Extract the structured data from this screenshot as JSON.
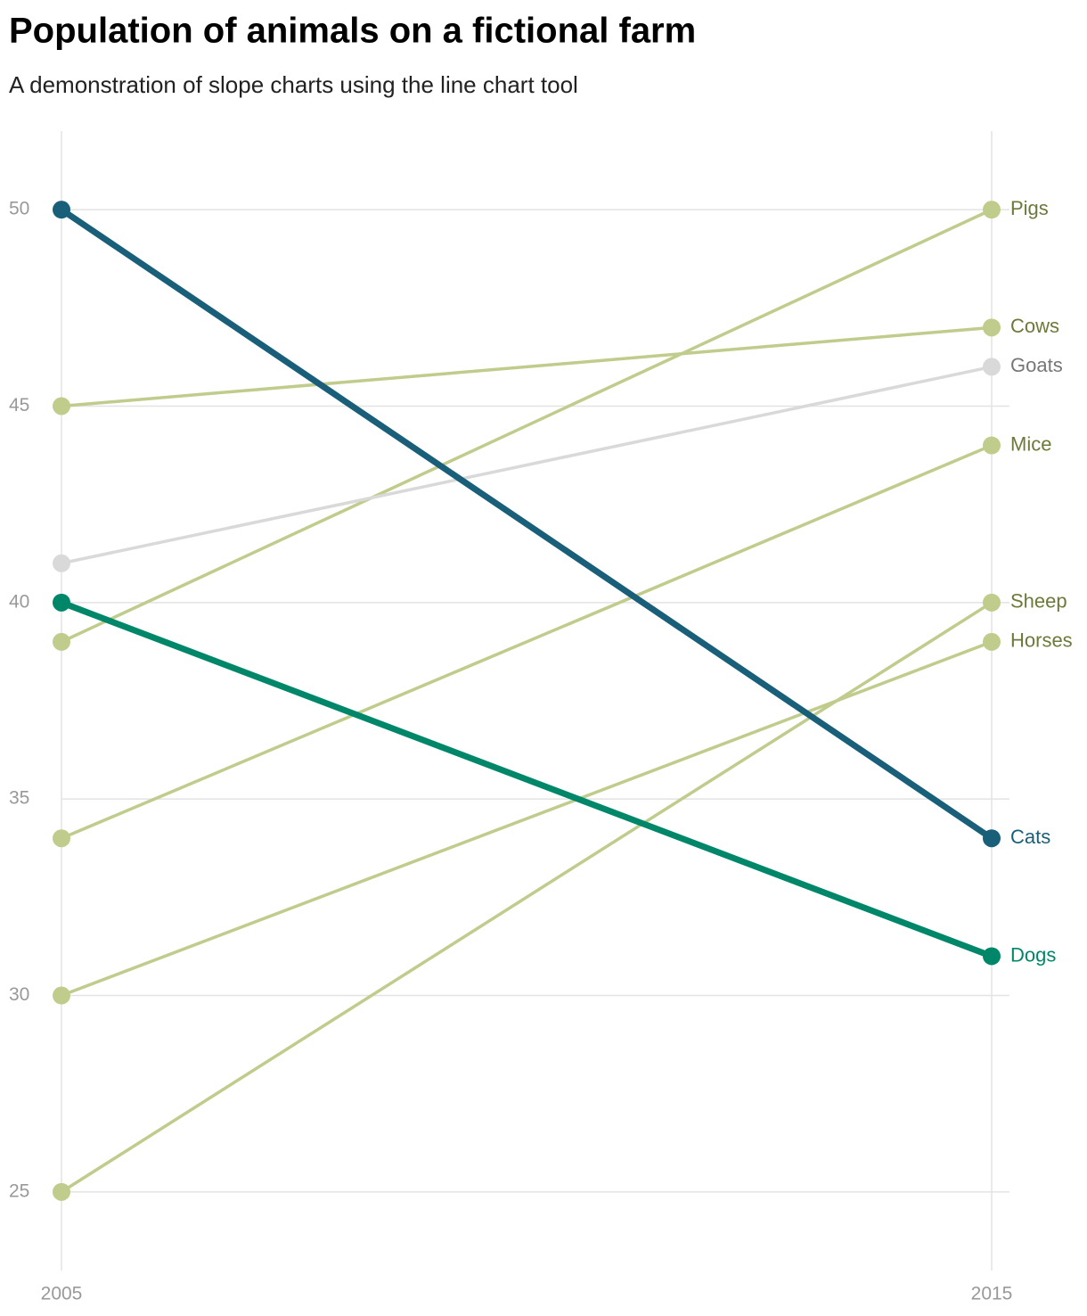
{
  "chart_data": {
    "type": "line",
    "title": "Population of animals on a fictional farm",
    "subtitle": "A demonstration of slope charts using the line chart tool",
    "x": [
      2005,
      2015
    ],
    "xlim": [
      2005,
      2015
    ],
    "xticks": [
      2005,
      2015
    ],
    "ylim": [
      23,
      52
    ],
    "yticks": [
      25,
      30,
      35,
      40,
      45,
      50
    ],
    "grid": true,
    "series": [
      {
        "name": "Pigs",
        "color": "#bfcc8c",
        "label_color": "#6b7a3a",
        "values": [
          39,
          50
        ]
      },
      {
        "name": "Cows",
        "color": "#bfcc8c",
        "label_color": "#6b7a3a",
        "values": [
          45,
          47
        ]
      },
      {
        "name": "Goats",
        "color": "#d9d9d9",
        "label_color": "#777777",
        "values": [
          41,
          46
        ]
      },
      {
        "name": "Mice",
        "color": "#bfcc8c",
        "label_color": "#6b7a3a",
        "values": [
          34,
          44
        ]
      },
      {
        "name": "Sheep",
        "color": "#bfcc8c",
        "label_color": "#6b7a3a",
        "values": [
          25,
          40
        ]
      },
      {
        "name": "Horses",
        "color": "#bfcc8c",
        "label_color": "#6b7a3a",
        "values": [
          30,
          39
        ]
      },
      {
        "name": "Cats",
        "color": "#1a5f7a",
        "label_color": "#1a5f7a",
        "highlight": true,
        "values": [
          50,
          34
        ]
      },
      {
        "name": "Dogs",
        "color": "#00876a",
        "label_color": "#00876a",
        "highlight": true,
        "values": [
          40,
          31
        ]
      }
    ]
  }
}
